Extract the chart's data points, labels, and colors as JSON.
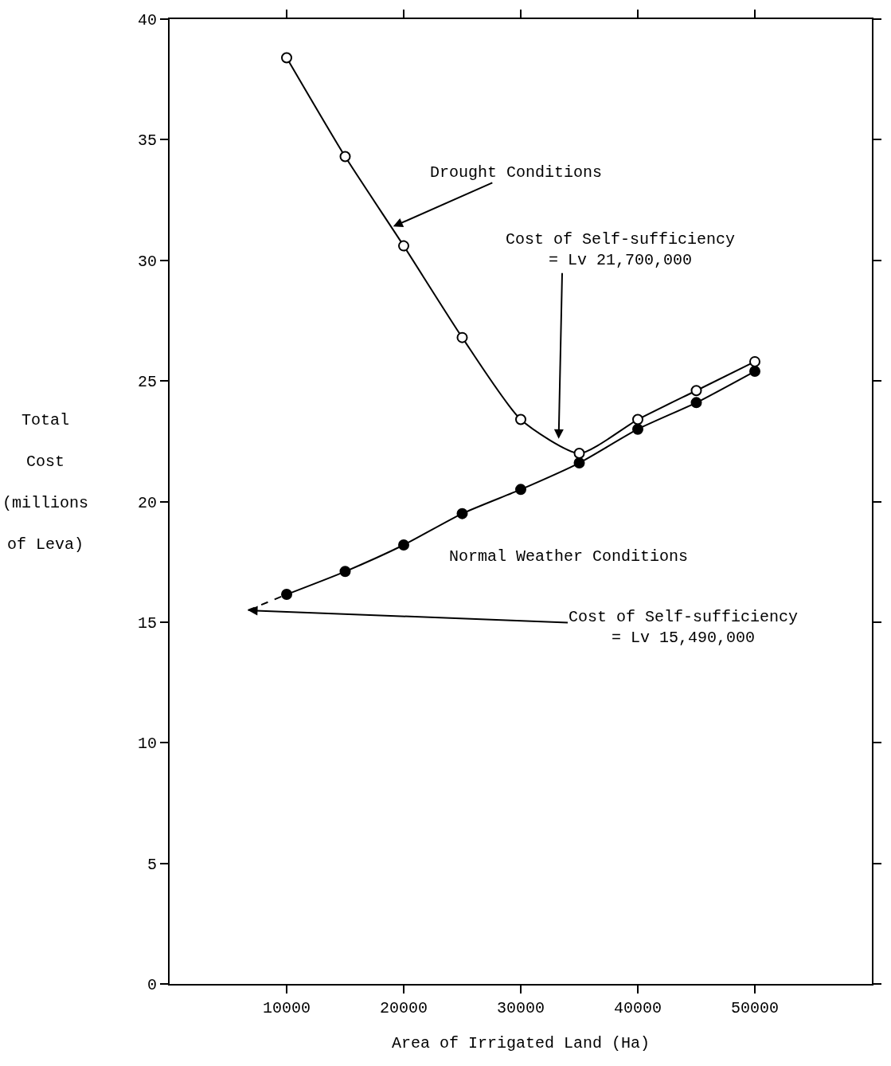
{
  "chart_data": {
    "type": "line",
    "xlabel": "Area of Irrigated Land (Ha)",
    "ylabel": "Total\nCost\n(millions\nof Leva)",
    "xlim": [
      0,
      60000
    ],
    "xticks": [
      10000,
      20000,
      30000,
      40000,
      50000
    ],
    "ylim": [
      0,
      40
    ],
    "yticks": [
      0,
      5,
      10,
      15,
      20,
      25,
      30,
      35,
      40
    ],
    "series": [
      {
        "color": "#000000",
        "marker": "circle-open",
        "line_style": "solid",
        "x": [
          10000,
          15000,
          20000,
          25000,
          30000,
          35000,
          40000,
          45000,
          50000
        ],
        "values": [
          38.4,
          34.3,
          30.6,
          26.8,
          23.4,
          22.0,
          23.4,
          24.6,
          25.8
        ]
      },
      {
        "color": "#000000",
        "marker": "circle",
        "line_style": "solid",
        "x": [
          10000,
          15000,
          20000,
          25000,
          30000,
          35000,
          40000,
          45000,
          50000
        ],
        "values": [
          16.15,
          17.1,
          18.2,
          19.5,
          20.5,
          21.6,
          23.0,
          24.1,
          25.4
        ]
      },
      {
        "color": "#000000",
        "marker": "none",
        "line_style": "dashed",
        "x": [
          6700,
          10000
        ],
        "values": [
          15.49,
          16.15
        ]
      }
    ],
    "annotations": [
      {
        "text": "Drought Conditions",
        "x": 19100,
        "y": 31.4
      },
      "Cost of Self-sufficiency\n= Lv 21,700,000",
      "Normal Weather Conditions",
      {
        "text": "Cost of Self-sufficiency\n= Lv 15,490,000",
        "x": 6700,
        "y": 15.49
      }
    ]
  }
}
